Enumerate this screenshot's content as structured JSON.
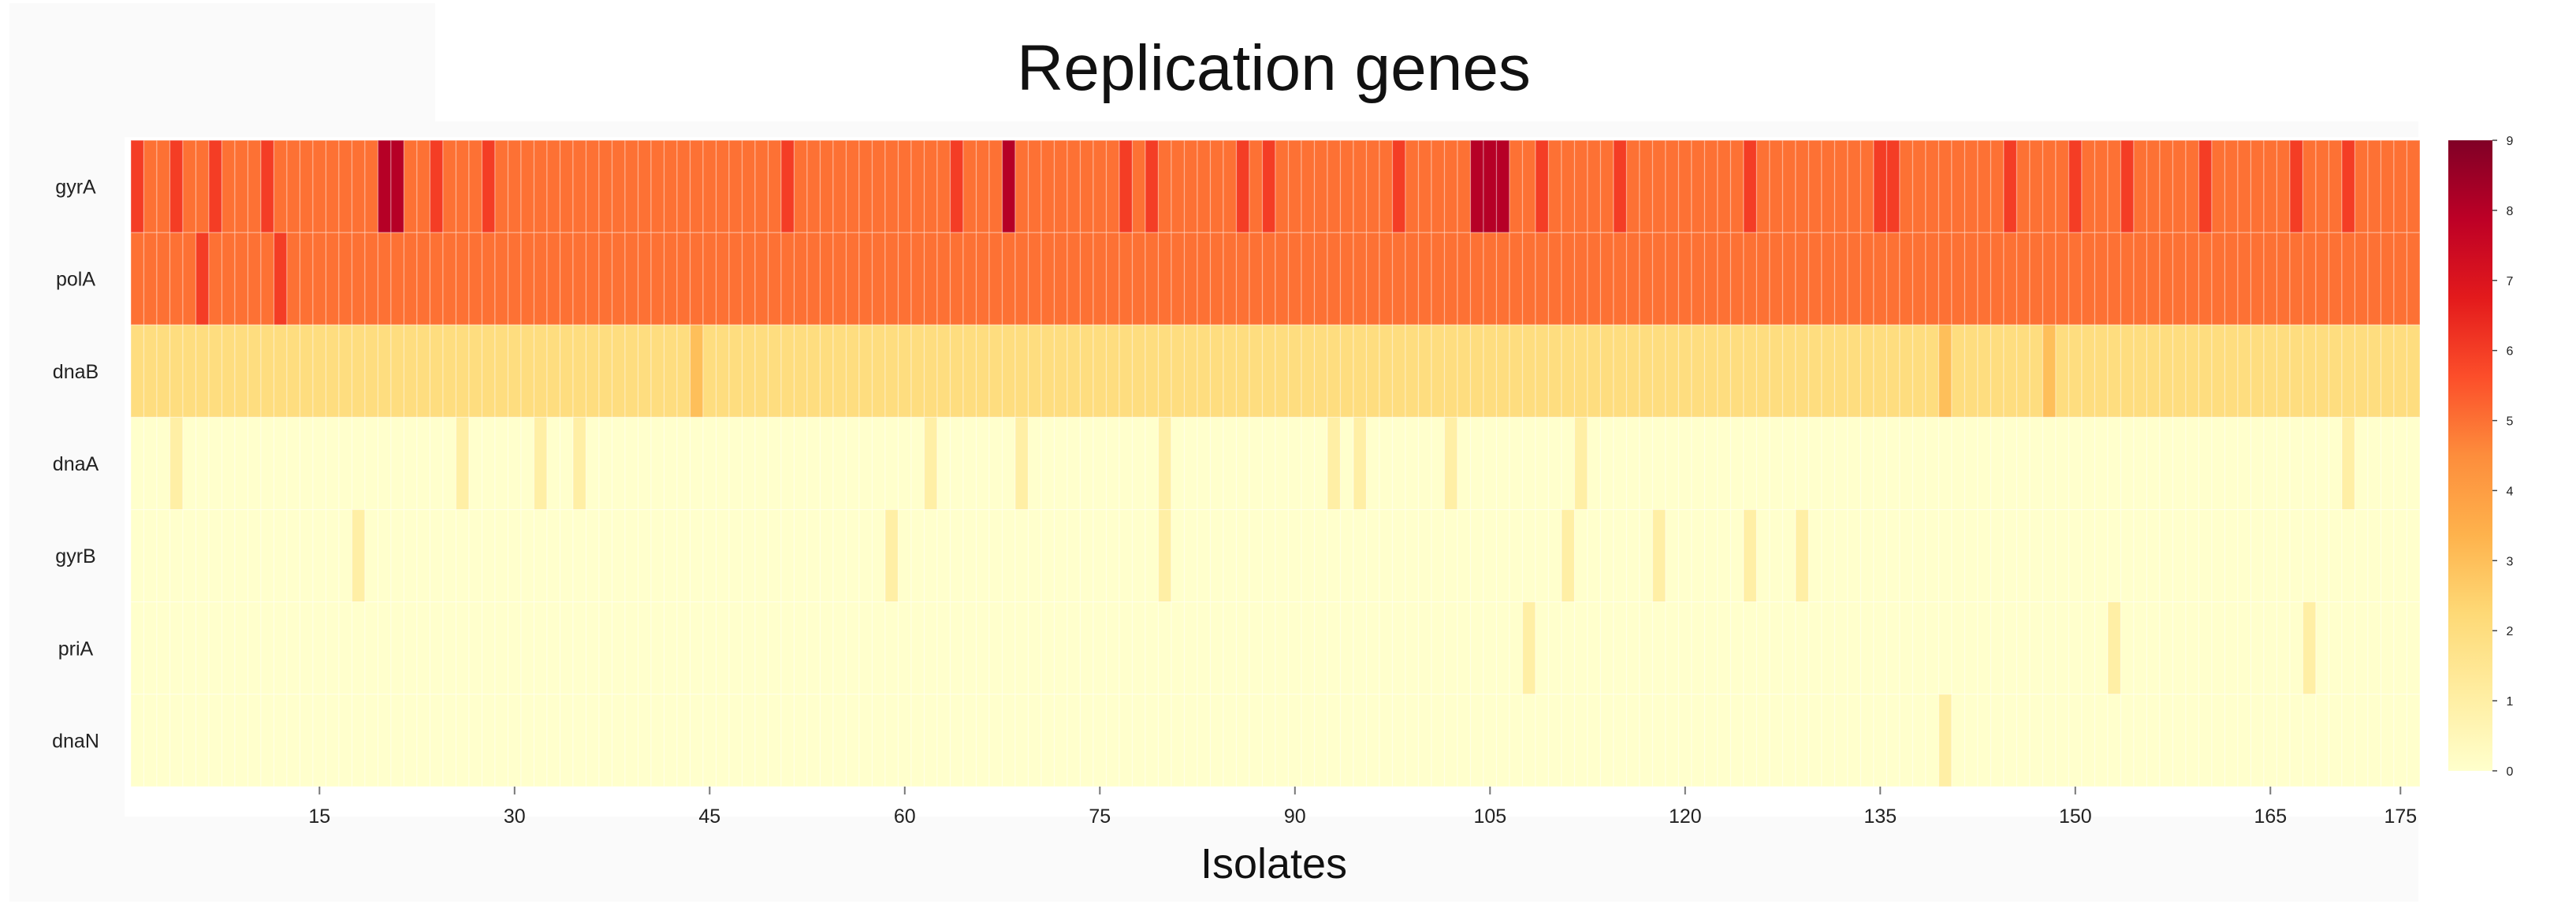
{
  "chart_data": {
    "type": "heatmap",
    "title": "Replication genes",
    "xlabel": "Isolates",
    "ylabel": "",
    "genes": [
      "gyrA",
      "polA",
      "dnaB",
      "dnaA",
      "gyrB",
      "priA",
      "dnaN"
    ],
    "n_isolates": 176,
    "x_ticks": [
      15,
      30,
      45,
      60,
      75,
      90,
      105,
      120,
      135,
      150,
      165,
      175
    ],
    "colorbar": {
      "min": 0,
      "max": 9,
      "ticks": [
        0,
        1,
        2,
        3,
        4,
        5,
        6,
        7,
        8,
        9
      ],
      "colors": [
        "#ffffcc",
        "#ffeda0",
        "#fed976",
        "#feb24c",
        "#fd8d3c",
        "#fc4e2a",
        "#e31a1c",
        "#bd0026",
        "#800026"
      ]
    },
    "baseline": {
      "gyrA": 5,
      "polA": 5,
      "dnaB": 2,
      "dnaA": 0,
      "gyrB": 0,
      "priA": 0,
      "dnaN": 0
    },
    "deviations": [
      {
        "gene": "gyrA",
        "isolates": [
          1,
          4,
          7,
          11,
          24,
          28,
          51,
          64,
          77,
          79,
          86,
          88,
          98,
          109,
          115,
          125,
          135,
          136,
          145,
          150,
          154,
          160,
          167,
          171
        ],
        "value": 6
      },
      {
        "gene": "gyrA",
        "isolates": [
          20,
          21,
          68,
          104,
          105,
          106
        ],
        "value": 8
      },
      {
        "gene": "polA",
        "isolates": [
          6,
          12
        ],
        "value": 6
      },
      {
        "gene": "dnaB",
        "isolates": [
          44,
          140,
          148
        ],
        "value": 3
      },
      {
        "gene": "dnaA",
        "isolates": [
          4,
          26,
          32,
          35,
          62,
          69,
          80,
          93,
          95,
          102,
          112,
          171
        ],
        "value": 1
      },
      {
        "gene": "gyrB",
        "isolates": [
          18,
          59,
          80,
          111,
          118,
          125,
          129
        ],
        "value": 1
      },
      {
        "gene": "priA",
        "isolates": [
          108,
          153,
          168
        ],
        "value": 1
      },
      {
        "gene": "dnaN",
        "isolates": [
          140
        ],
        "value": 1
      }
    ]
  }
}
